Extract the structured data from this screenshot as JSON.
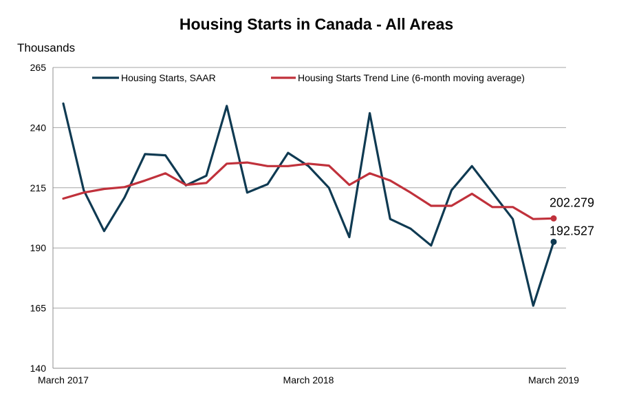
{
  "chart_data": {
    "type": "line",
    "title": "Housing Starts in Canada - All Areas",
    "ylabel": "Thousands",
    "xlabel": "",
    "ylim": [
      140,
      265
    ],
    "yticks": [
      140,
      165,
      190,
      215,
      240,
      265
    ],
    "grid": true,
    "legend_position": "top",
    "x": [
      "Mar 2017",
      "Apr 2017",
      "May 2017",
      "Jun 2017",
      "Jul 2017",
      "Aug 2017",
      "Sep 2017",
      "Oct 2017",
      "Nov 2017",
      "Dec 2017",
      "Jan 2018",
      "Feb 2018",
      "Mar 2018",
      "Apr 2018",
      "May 2018",
      "Jun 2018",
      "Jul 2018",
      "Aug 2018",
      "Sep 2018",
      "Oct 2018",
      "Nov 2018",
      "Dec 2018",
      "Jan 2019",
      "Feb 2019",
      "Mar 2019"
    ],
    "x_tick_labels": [
      {
        "index": 0,
        "label": "March 2017"
      },
      {
        "index": 12,
        "label": "March 2018"
      },
      {
        "index": 24,
        "label": "March 2019"
      }
    ],
    "series": [
      {
        "name": "Housing Starts, SAAR",
        "color": "#0f3a52",
        "values": [
          250,
          214,
          197,
          211,
          229,
          228.5,
          216,
          220,
          249,
          213,
          216.5,
          229.5,
          224,
          215,
          194.5,
          246,
          202,
          198,
          191,
          214,
          224,
          213,
          202,
          166,
          192.527
        ],
        "end_label": "192.527"
      },
      {
        "name": "Housing Starts Trend Line (6-month moving average)",
        "color": "#c0313b",
        "values": [
          210.5,
          213,
          214.5,
          215.3,
          218,
          221,
          216.2,
          217,
          225,
          225.5,
          224,
          224,
          225,
          224.2,
          216.2,
          221,
          218,
          213,
          207.5,
          207.5,
          212.5,
          207,
          207,
          202,
          202.279
        ],
        "end_label": "202.279"
      }
    ]
  }
}
